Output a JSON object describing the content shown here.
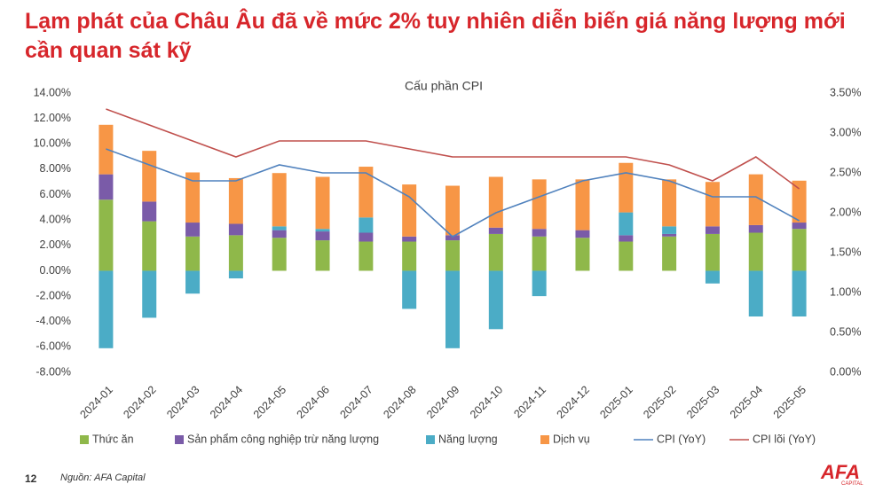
{
  "header": {
    "title": "Lạm phát của Châu Âu đã về mức 2% tuy nhiên diễn biến giá năng lượng mới cần quan sát kỹ"
  },
  "chart_data": {
    "type": "bar",
    "title": "Cấu phần CPI",
    "categories": [
      "2024-01",
      "2024-02",
      "2024-03",
      "2024-04",
      "2024-05",
      "2024-06",
      "2024-07",
      "2024-08",
      "2024-09",
      "2024-10",
      "2024-11",
      "2024-12",
      "2025-01",
      "2025-02",
      "2025-03",
      "2025-04",
      "2025-05"
    ],
    "series": [
      {
        "name": "Thức ăn",
        "color": "#8fb84a",
        "values": [
          5.6,
          3.9,
          2.7,
          2.8,
          2.6,
          2.4,
          2.3,
          2.3,
          2.4,
          2.9,
          2.7,
          2.6,
          2.3,
          2.7,
          2.9,
          3.0,
          3.3
        ]
      },
      {
        "name": "Sản phẩm công nghiệp trừ năng lượng",
        "color": "#7a5ba8",
        "values": [
          2.0,
          1.55,
          1.1,
          0.9,
          0.6,
          0.7,
          0.7,
          0.4,
          0.4,
          0.5,
          0.6,
          0.6,
          0.5,
          0.2,
          0.6,
          0.6,
          0.5
        ]
      },
      {
        "name": "Năng lượng",
        "color": "#4bacc6",
        "values": [
          -6.1,
          -3.7,
          -1.8,
          -0.6,
          0.3,
          0.2,
          1.2,
          -3.0,
          -6.1,
          -4.6,
          -2.0,
          0,
          1.8,
          0.6,
          -1.0,
          -3.6,
          -3.6
        ]
      },
      {
        "name": "Dịch vụ",
        "color": "#f79646",
        "values": [
          3.9,
          4.0,
          3.95,
          3.6,
          4.2,
          4.1,
          4.0,
          4.1,
          3.9,
          4.0,
          3.9,
          4.0,
          3.9,
          3.7,
          3.5,
          4.0,
          3.3
        ]
      },
      {
        "name": "CPI (YoY)",
        "color": "#4f81bd",
        "type": "line",
        "axis": "y2",
        "values": [
          2.8,
          2.6,
          2.4,
          2.4,
          2.6,
          2.5,
          2.5,
          2.2,
          1.7,
          2.0,
          2.2,
          2.4,
          2.5,
          2.4,
          2.2,
          2.2,
          1.9
        ]
      },
      {
        "name": "CPI lõi (YoY)",
        "color": "#c0504d",
        "type": "line",
        "axis": "y2",
        "values": [
          3.3,
          3.1,
          2.9,
          2.7,
          2.9,
          2.9,
          2.9,
          2.8,
          2.7,
          2.7,
          2.7,
          2.7,
          2.7,
          2.6,
          2.4,
          2.7,
          2.3
        ]
      }
    ],
    "ylim": [
      -8,
      14
    ],
    "yticks": [
      {
        "value": -8,
        "label": "-8.00%"
      },
      {
        "value": -6,
        "label": "-6.00%"
      },
      {
        "value": -4,
        "label": "-4.00%"
      },
      {
        "value": -2,
        "label": "-2.00%"
      },
      {
        "value": 0,
        "label": "0.00%"
      },
      {
        "value": 2,
        "label": "2.00%"
      },
      {
        "value": 4,
        "label": "4.00%"
      },
      {
        "value": 6,
        "label": "6.00%"
      },
      {
        "value": 8,
        "label": "8.00%"
      },
      {
        "value": 10,
        "label": "10.00%"
      },
      {
        "value": 12,
        "label": "12.00%"
      },
      {
        "value": 14,
        "label": "14.00%"
      }
    ],
    "y2lim": [
      0,
      3.5
    ],
    "y2ticks": [
      {
        "value": 0,
        "label": "0.00%"
      },
      {
        "value": 0.5,
        "label": "0.50%"
      },
      {
        "value": 1,
        "label": "1.00%"
      },
      {
        "value": 1.5,
        "label": "1.50%"
      },
      {
        "value": 2,
        "label": "2.00%"
      },
      {
        "value": 2.5,
        "label": "2.50%"
      },
      {
        "value": 3,
        "label": "3.00%"
      },
      {
        "value": 3.5,
        "label": "3.50%"
      }
    ],
    "legend": "bottom"
  },
  "footer": {
    "page": "12",
    "source": "Nguồn: AFA Capital",
    "logo": "AFA",
    "logo_sub": "CAPITAL"
  }
}
